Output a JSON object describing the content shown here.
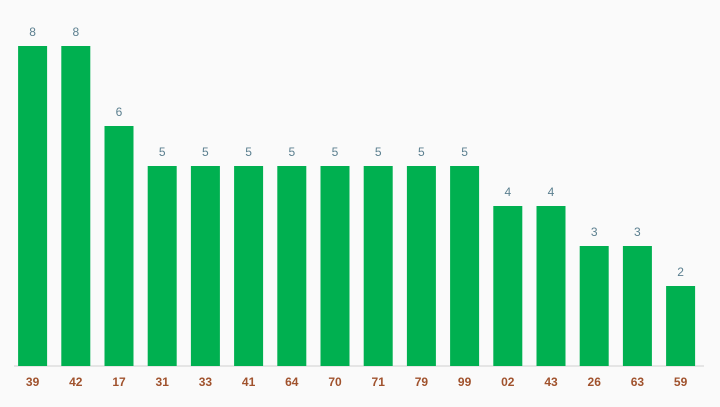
{
  "chart_data": {
    "type": "bar",
    "categories": [
      "39",
      "42",
      "17",
      "31",
      "33",
      "41",
      "64",
      "70",
      "71",
      "79",
      "99",
      "02",
      "43",
      "26",
      "63",
      "59"
    ],
    "values": [
      8,
      8,
      6,
      5,
      5,
      5,
      5,
      5,
      5,
      5,
      5,
      4,
      4,
      3,
      3,
      2
    ],
    "color": "#00b050"
  }
}
